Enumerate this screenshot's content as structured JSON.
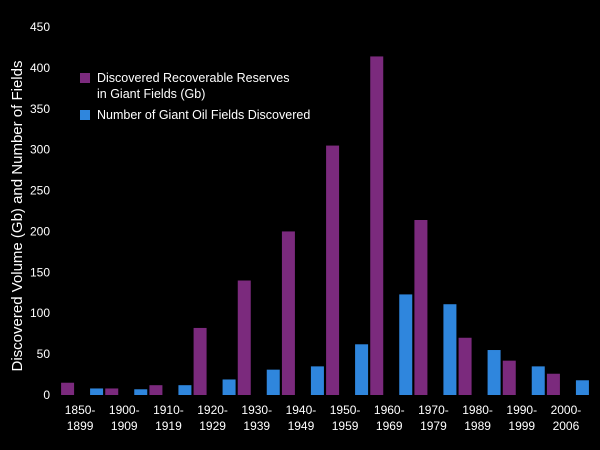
{
  "chart_data": {
    "type": "bar",
    "title": "",
    "xlabel": "",
    "ylabel": "Discovered Volume (Gb) and Number of Fields",
    "ylim": [
      0,
      450
    ],
    "yticks": [
      0,
      50,
      100,
      150,
      200,
      250,
      300,
      350,
      400,
      450
    ],
    "grid": false,
    "legend_position": "top-left",
    "categories": [
      [
        "1850-",
        "1899"
      ],
      [
        "1900-",
        "1909"
      ],
      [
        "1910-",
        "1919"
      ],
      [
        "1920-",
        "1929"
      ],
      [
        "1930-",
        "1939"
      ],
      [
        "1940-",
        "1949"
      ],
      [
        "1950-",
        "1959"
      ],
      [
        "1960-",
        "1969"
      ],
      [
        "1970-",
        "1979"
      ],
      [
        "1980-",
        "1989"
      ],
      [
        "1990-",
        "1999"
      ],
      [
        "2000-",
        "2006"
      ]
    ],
    "series": [
      {
        "name": "Discovered Recoverable Reserves",
        "name_line2": "in Giant Fields (Gb)",
        "color": "#7b2a7d",
        "values": [
          15,
          8,
          12,
          82,
          140,
          200,
          305,
          414,
          214,
          70,
          42,
          26
        ]
      },
      {
        "name": "Number of Giant Oil Fields Discovered",
        "color": "#2f86dd",
        "values": [
          8,
          7,
          12,
          19,
          31,
          35,
          62,
          123,
          111,
          55,
          35,
          18
        ]
      }
    ]
  }
}
